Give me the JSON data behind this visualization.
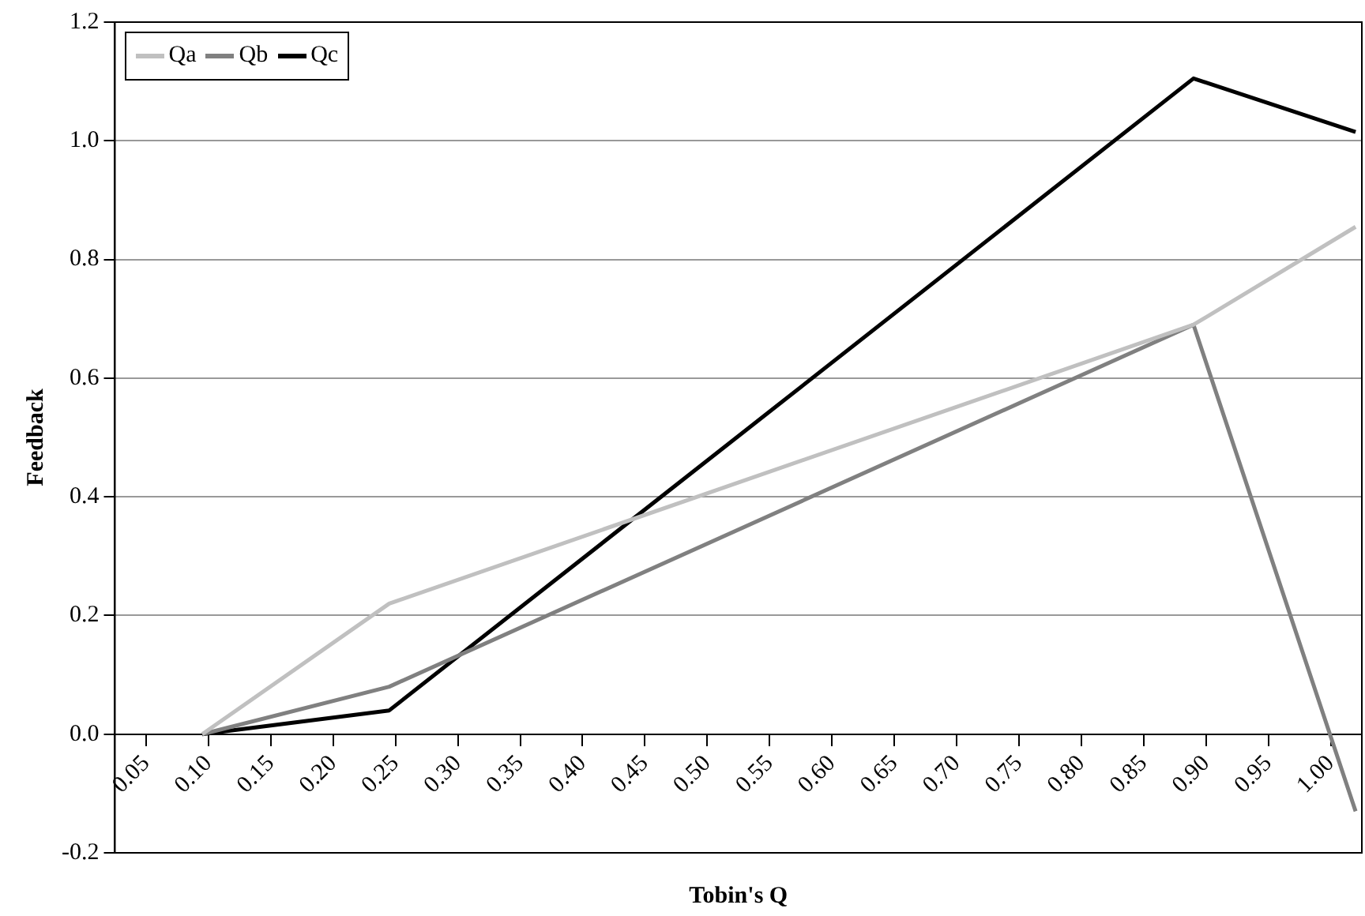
{
  "chart_data": {
    "type": "line",
    "xlabel": "Tobin's Q",
    "ylabel": "Feedback",
    "xlim": [
      0.025,
      1.025
    ],
    "xticks": [
      {
        "value": 0.05,
        "label": "0.05"
      },
      {
        "value": 0.1,
        "label": "0.10"
      },
      {
        "value": 0.15,
        "label": "0.15"
      },
      {
        "value": 0.2,
        "label": "0.20"
      },
      {
        "value": 0.25,
        "label": "0.25"
      },
      {
        "value": 0.3,
        "label": "0.30"
      },
      {
        "value": 0.35,
        "label": "0.35"
      },
      {
        "value": 0.4,
        "label": "0.40"
      },
      {
        "value": 0.45,
        "label": "0.45"
      },
      {
        "value": 0.5,
        "label": "0.50"
      },
      {
        "value": 0.55,
        "label": "0.55"
      },
      {
        "value": 0.6,
        "label": "0.60"
      },
      {
        "value": 0.65,
        "label": "0.65"
      },
      {
        "value": 0.7,
        "label": "0.70"
      },
      {
        "value": 0.75,
        "label": "0.75"
      },
      {
        "value": 0.8,
        "label": "0.80"
      },
      {
        "value": 0.85,
        "label": "0.85"
      },
      {
        "value": 0.9,
        "label": "0.90"
      },
      {
        "value": 0.95,
        "label": "0.95"
      },
      {
        "value": 1,
        "label": "1.00"
      }
    ],
    "ylim": [
      -0.2,
      1.2
    ],
    "yticks": [
      {
        "value": -0.2,
        "label": "-0.2"
      },
      {
        "value": 0,
        "label": "0.0"
      },
      {
        "value": 0.2,
        "label": "0.2"
      },
      {
        "value": 0.4,
        "label": "0.4"
      },
      {
        "value": 0.6,
        "label": "0.6"
      },
      {
        "value": 0.8,
        "label": "0.8"
      },
      {
        "value": 1,
        "label": "1.0"
      },
      {
        "value": 1.2,
        "label": "1.2"
      }
    ],
    "x": [
      0.095,
      0.245,
      0.89,
      1.02
    ],
    "series": [
      {
        "name": "Qa",
        "color": "#c0c0c0",
        "values": [
          0,
          0.22,
          0.69,
          0.855
        ]
      },
      {
        "name": "Qb",
        "color": "#808080",
        "values": [
          0,
          0.08,
          0.69,
          -0.13
        ]
      },
      {
        "name": "Qc",
        "color": "#000000",
        "values": [
          0,
          0.04,
          1.105,
          1.015
        ]
      }
    ],
    "grid": "y",
    "legend": "top left",
    "marker": "none",
    "line_style": "solid"
  }
}
